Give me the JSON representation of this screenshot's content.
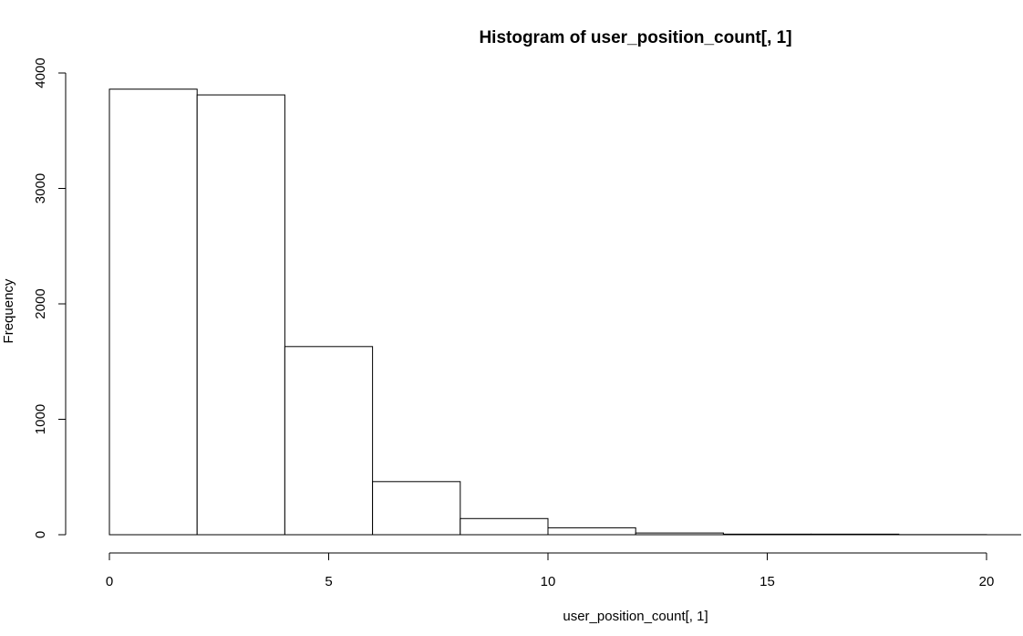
{
  "chart_data": {
    "type": "bar",
    "title": "Histogram of user_position_count[, 1]",
    "xlabel": "user_position_count[, 1]",
    "ylabel": "Frequency",
    "bins": [
      {
        "x0": 0,
        "x1": 2,
        "value": 3860
      },
      {
        "x0": 2,
        "x1": 4,
        "value": 3810
      },
      {
        "x0": 4,
        "x1": 6,
        "value": 1630
      },
      {
        "x0": 6,
        "x1": 8,
        "value": 460
      },
      {
        "x0": 8,
        "x1": 10,
        "value": 140
      },
      {
        "x0": 10,
        "x1": 12,
        "value": 60
      },
      {
        "x0": 12,
        "x1": 14,
        "value": 15
      },
      {
        "x0": 14,
        "x1": 16,
        "value": 5
      },
      {
        "x0": 16,
        "x1": 18,
        "value": 5
      },
      {
        "x0": 18,
        "x1": 20,
        "value": 1
      }
    ],
    "x_ticks": [
      0,
      5,
      10,
      15,
      20
    ],
    "y_ticks": [
      0,
      1000,
      2000,
      3000,
      4000
    ],
    "x_tick_labels": [
      "0",
      "5",
      "10",
      "15",
      "20"
    ],
    "y_tick_labels": [
      "0",
      "1000",
      "2000",
      "3000",
      "4000"
    ],
    "xlim": [
      0,
      20
    ],
    "ylim": [
      0,
      4000
    ],
    "grid": false,
    "colors": {
      "bar_fill": "#ffffff",
      "bar_stroke": "#000000",
      "text": "#000000"
    }
  }
}
